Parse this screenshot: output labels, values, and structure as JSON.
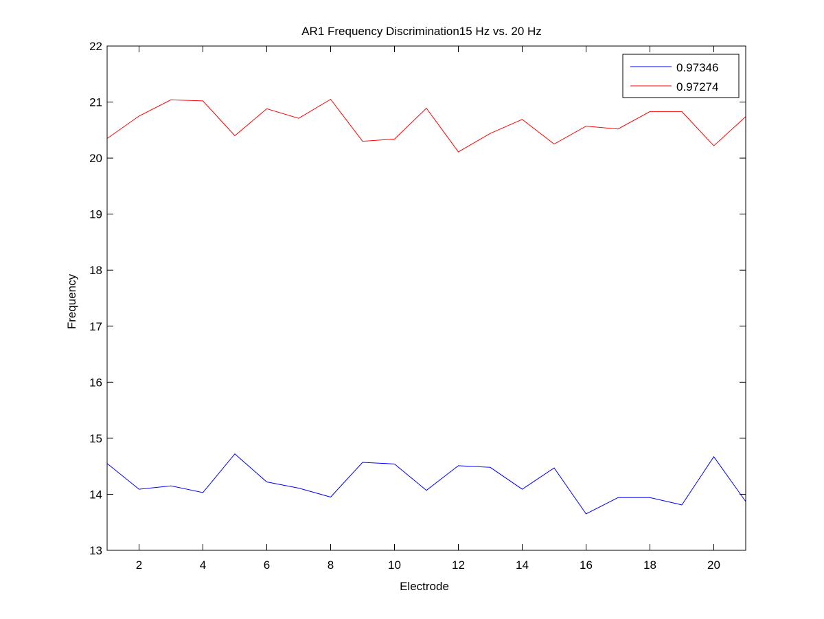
{
  "chart_data": {
    "type": "line",
    "title": "AR1 Frequency Discrimination15 Hz vs. 20 Hz",
    "xlabel": "Electrode",
    "ylabel": "Frequency",
    "xlim": [
      1,
      21
    ],
    "ylim": [
      13,
      22
    ],
    "xticks": [
      2,
      4,
      6,
      8,
      10,
      12,
      14,
      16,
      18,
      20
    ],
    "yticks": [
      13,
      14,
      15,
      16,
      17,
      18,
      19,
      20,
      21,
      22
    ],
    "grid": false,
    "legend_position": "top-right",
    "x": [
      1,
      2,
      3,
      4,
      5,
      6,
      7,
      8,
      9,
      10,
      11,
      12,
      13,
      14,
      15,
      16,
      17,
      18,
      19,
      20,
      21
    ],
    "series": [
      {
        "name": "0.97346",
        "color": "#0000ff",
        "values": [
          14.55,
          14.09,
          14.15,
          14.03,
          14.72,
          14.22,
          14.11,
          13.95,
          14.57,
          14.54,
          14.07,
          14.51,
          14.48,
          14.09,
          14.47,
          13.65,
          13.94,
          13.94,
          13.81,
          14.67,
          13.87
        ]
      },
      {
        "name": "0.97274",
        "color": "#ff0000",
        "values": [
          20.35,
          20.75,
          21.04,
          21.02,
          20.4,
          20.88,
          20.71,
          21.05,
          20.3,
          20.34,
          20.89,
          20.11,
          20.44,
          20.69,
          20.25,
          20.57,
          20.52,
          20.83,
          20.83,
          20.22,
          20.74
        ]
      }
    ]
  }
}
